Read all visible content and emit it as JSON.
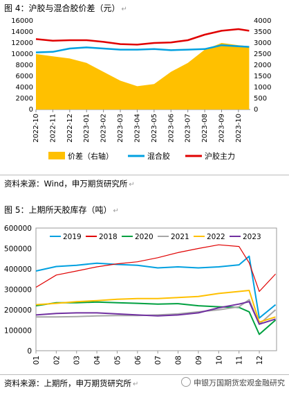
{
  "figure4": {
    "title": "图 4：沪胶与混合胶价差（元）",
    "source": "资料来源：Wind，申万期货研究所",
    "para_mark": "↵"
  },
  "figure5": {
    "title": "图 5：上期所天胶库存（吨）",
    "source": "资料来源：上期所，申万期货研究所",
    "para_mark": "↵"
  },
  "watermark": "申银万国期货宏观金融研究",
  "chart_data": [
    {
      "type": "line",
      "ylim_left": [
        0,
        16000
      ],
      "yticks_left": [
        0,
        2000,
        4000,
        6000,
        8000,
        10000,
        12000,
        14000,
        16000
      ],
      "ylim_right": [
        0,
        4000
      ],
      "yticks_right": [
        0,
        500,
        1000,
        1500,
        2000,
        2500,
        3000,
        3500,
        4000
      ],
      "x_range": [
        "2022-10",
        "2023-10"
      ],
      "xticks": [
        "2022-10",
        "2022-11",
        "2022-12",
        "2023-01",
        "2023-02",
        "2023-03",
        "2023-04",
        "2023-05",
        "2023-06",
        "2023-07",
        "2023-08",
        "2023-09",
        "2023-10"
      ],
      "legend_position": "bottom",
      "x": [
        "2022-10",
        "2022-11",
        "2022-12",
        "2023-01",
        "2023-02",
        "2023-03",
        "2023-04",
        "2023-05",
        "2023-06",
        "2023-07",
        "2023-08",
        "2023-09",
        "2023-10",
        "2023-10-20"
      ],
      "series": [
        {
          "name": "价差（右轴）",
          "kind": "area",
          "axis": "right",
          "color": "#FFC000",
          "values": [
            2500,
            2400,
            2300,
            2100,
            1700,
            1300,
            1050,
            1150,
            1700,
            2100,
            2700,
            3000,
            2900,
            2850
          ]
        },
        {
          "name": "混合胶",
          "kind": "line",
          "axis": "left",
          "color": "#00A0E0",
          "values": [
            10300,
            10400,
            11000,
            11200,
            11000,
            10800,
            10800,
            10900,
            10700,
            10800,
            10900,
            11600,
            11400,
            11300
          ]
        },
        {
          "name": "沪胶主力",
          "kind": "line",
          "axis": "left",
          "color": "#E00000",
          "values": [
            12700,
            12400,
            12500,
            12500,
            12200,
            11800,
            11700,
            12000,
            12100,
            12500,
            13500,
            14200,
            14500,
            14200
          ]
        }
      ]
    },
    {
      "type": "line",
      "ylim": [
        0,
        600000
      ],
      "yticks": [
        0,
        100000,
        200000,
        300000,
        400000,
        500000,
        600000
      ],
      "x_range": [
        "01",
        "12"
      ],
      "xticks": [
        "01",
        "02",
        "03",
        "04",
        "05",
        "06",
        "07",
        "08",
        "09",
        "10",
        "11",
        "12"
      ],
      "legend_position": "top",
      "x": [
        1,
        2,
        3,
        4,
        5,
        6,
        7,
        8,
        9,
        10,
        11,
        11.5,
        12,
        12.8
      ],
      "series": [
        {
          "name": "2019",
          "color": "#00A0E0",
          "values": [
            390000,
            412000,
            418000,
            428000,
            422000,
            418000,
            405000,
            410000,
            405000,
            410000,
            420000,
            462000,
            160000,
            225000
          ]
        },
        {
          "name": "2018",
          "color": "#E00000",
          "values": [
            310000,
            370000,
            390000,
            410000,
            425000,
            435000,
            455000,
            480000,
            500000,
            518000,
            510000,
            430000,
            290000,
            375000
          ]
        },
        {
          "name": "2020",
          "color": "#00A040",
          "values": [
            220000,
            235000,
            235000,
            238000,
            235000,
            232000,
            228000,
            230000,
            220000,
            215000,
            212000,
            190000,
            80000,
            150000
          ]
        },
        {
          "name": "2021",
          "color": "#A6A6A6",
          "values": [
            165000,
            165000,
            167000,
            170000,
            172000,
            172000,
            175000,
            180000,
            190000,
            200000,
            215000,
            250000,
            130000,
            200000
          ]
        },
        {
          "name": "2022",
          "color": "#FFC000",
          "values": [
            225000,
            232000,
            240000,
            245000,
            252000,
            255000,
            255000,
            260000,
            265000,
            280000,
            290000,
            295000,
            140000,
            165000
          ]
        },
        {
          "name": "2023",
          "color": "#7030A0",
          "values": [
            175000,
            182000,
            185000,
            185000,
            180000,
            175000,
            170000,
            175000,
            185000,
            210000,
            228000,
            240000,
            130000,
            155000
          ]
        }
      ]
    }
  ]
}
